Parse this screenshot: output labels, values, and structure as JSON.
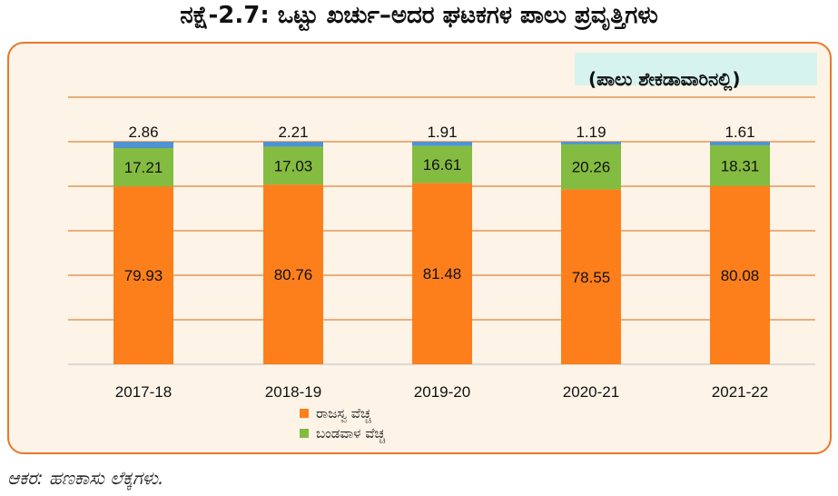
{
  "title": "ನಕ್ಷೆ-2.7: ಒಟ್ಟು ಖರ್ಚು–ಅದರ ಘಟಕಗಳ ಪಾಲು ಪ್ರವೃತ್ತಿಗಳು",
  "unit_label": "(ಪಾಲು ಶೇಕಡಾವಾರಿನಲ್ಲಿ)",
  "source": "ಆಕರ: ಹಣಕಾಸು ಲೆಕ್ಕಗಳು.",
  "colors": {
    "revenue": "#fd7f1c",
    "capital": "#84bb41",
    "other": "#4f93d3",
    "grid": "#e0853a",
    "frame": "#e8782a"
  },
  "chart_data": {
    "type": "bar",
    "stacked": true,
    "categories": [
      "2017-18",
      "2018-19",
      "2019-20",
      "2020-21",
      "2021-22"
    ],
    "series": [
      {
        "name": "ರಾಜಸ್ವ ವೆಚ್ಚ",
        "values": [
          79.93,
          80.76,
          81.48,
          78.55,
          80.08
        ]
      },
      {
        "name": "ಬಂಡವಾಳ ವೆಚ್ಚ",
        "values": [
          17.21,
          17.03,
          16.61,
          20.26,
          18.31
        ]
      },
      {
        "name": "",
        "values": [
          2.86,
          2.21,
          1.91,
          1.19,
          1.61
        ]
      }
    ],
    "ylim": [
      0,
      120
    ],
    "grid": true,
    "legend_position": "bottom"
  }
}
